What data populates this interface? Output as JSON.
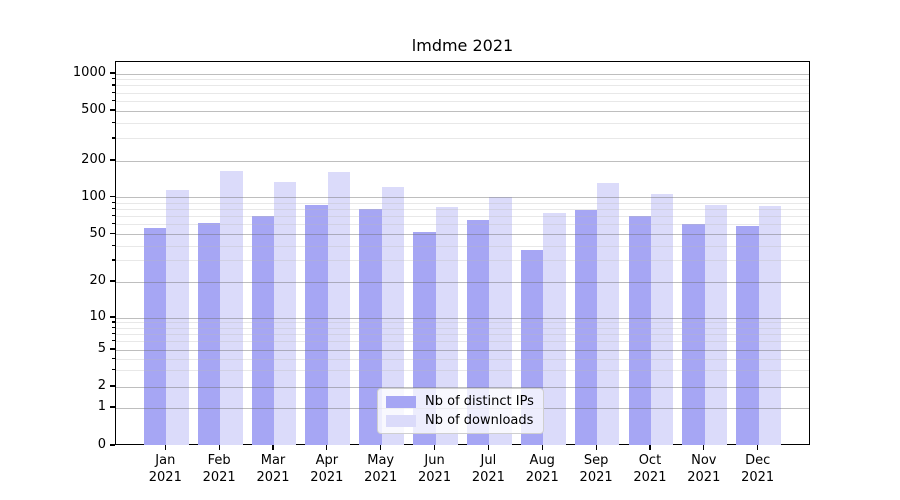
{
  "title": "lmdme 2021",
  "colors": {
    "ips_bar": "#a6a6f4",
    "downloads_bar": "#dbdbfa",
    "axis": "#000000",
    "grid_major": "#b0b0b0",
    "grid_minor": "#e6e6e6"
  },
  "legend": {
    "items": [
      {
        "label": "Nb of distinct IPs",
        "series": "ips"
      },
      {
        "label": "Nb of downloads",
        "series": "downloads"
      }
    ]
  },
  "chart_data": {
    "type": "bar",
    "title": "lmdme 2021",
    "x_months": [
      "Jan",
      "Feb",
      "Mar",
      "Apr",
      "May",
      "Jun",
      "Jul",
      "Aug",
      "Sep",
      "Oct",
      "Nov",
      "Dec"
    ],
    "x_year": "2021",
    "series": [
      {
        "name": "Nb of distinct IPs",
        "color": "#a6a6f4",
        "values": [
          57,
          62,
          71,
          87,
          80,
          52,
          66,
          37,
          79,
          71,
          61,
          59
        ]
      },
      {
        "name": "Nb of downloads",
        "color": "#dbdbfa",
        "values": [
          116,
          164,
          134,
          163,
          122,
          84,
          101,
          75,
          132,
          107,
          87,
          85
        ]
      }
    ],
    "y_ticks": [
      0,
      1,
      2,
      5,
      10,
      20,
      50,
      100,
      200,
      500,
      1000
    ],
    "y_minor_ticks": [
      3,
      4,
      6,
      7,
      8,
      9,
      30,
      40,
      60,
      70,
      80,
      90,
      300,
      400,
      600,
      700,
      800,
      900
    ],
    "yscale": "symlog",
    "ylim": [
      0,
      1250
    ],
    "grid": true,
    "legend_position": "lower center"
  }
}
